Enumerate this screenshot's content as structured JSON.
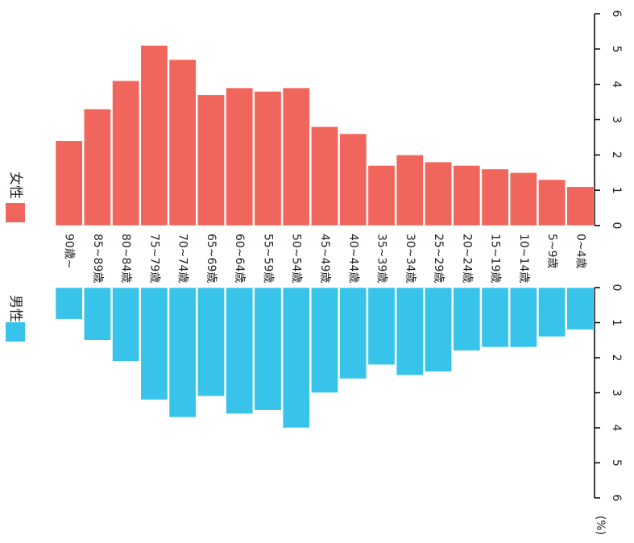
{
  "chart_data": {
    "type": "bar",
    "categories": [
      "90歳~",
      "85~89歳",
      "80~84歳",
      "75~79歳",
      "70~74歳",
      "65~69歳",
      "60~64歳",
      "55~59歳",
      "50~54歳",
      "45~49歳",
      "40~44歳",
      "35~39歳",
      "30~34歳",
      "25~29歳",
      "20~24歳",
      "15~19歳",
      "10~14歳",
      "5~9歳",
      "0~4歳"
    ],
    "series": [
      {
        "name": "女性",
        "color": "#f0665c",
        "values": [
          2.4,
          3.3,
          4.1,
          5.1,
          4.7,
          3.7,
          3.9,
          3.8,
          3.9,
          2.8,
          2.6,
          1.7,
          2.0,
          1.8,
          1.7,
          1.6,
          1.5,
          1.3,
          1.1
        ]
      },
      {
        "name": "男性",
        "color": "#38c4ea",
        "values": [
          0.9,
          1.5,
          2.1,
          3.2,
          3.7,
          3.1,
          3.6,
          3.5,
          4.0,
          3.0,
          2.6,
          2.2,
          2.5,
          2.4,
          1.8,
          1.7,
          1.7,
          1.4,
          1.2
        ]
      }
    ],
    "ylim": [
      0,
      6
    ],
    "yticks": [
      0,
      1,
      2,
      3,
      4,
      5,
      6
    ],
    "y_unit": "(%)"
  }
}
